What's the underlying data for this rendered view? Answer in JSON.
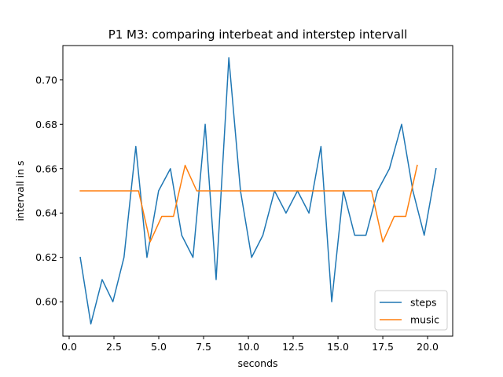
{
  "chart_data": {
    "type": "line",
    "title": "P1 M3: comparing interbeat and interstep intervall",
    "xlabel": "seconds",
    "ylabel": "intervall in s",
    "xlim": [
      -0.35,
      21.4
    ],
    "ylim": [
      0.5845,
      0.7155
    ],
    "xticks": [
      0.0,
      2.5,
      5.0,
      7.5,
      10.0,
      12.5,
      15.0,
      17.5,
      20.0
    ],
    "xtick_labels": [
      "0.0",
      "2.5",
      "5.0",
      "7.5",
      "10.0",
      "12.5",
      "15.0",
      "17.5",
      "20.0"
    ],
    "yticks": [
      0.6,
      0.62,
      0.64,
      0.66,
      0.68,
      0.7
    ],
    "ytick_labels": [
      "0.60",
      "0.62",
      "0.64",
      "0.66",
      "0.68",
      "0.70"
    ],
    "grid": false,
    "legend_position": "lower-right",
    "series": [
      {
        "name": "steps",
        "color": "#1f77b4",
        "x": [
          0.62,
          1.21,
          1.84,
          2.44,
          3.06,
          3.72,
          4.34,
          4.99,
          5.65,
          6.28,
          6.91,
          7.59,
          8.2,
          8.91,
          9.56,
          10.18,
          10.81,
          11.46,
          12.1,
          12.74,
          13.38,
          14.05,
          14.65,
          15.3,
          15.93,
          16.56,
          17.21,
          17.87,
          18.55,
          19.18,
          19.81,
          20.47
        ],
        "y": [
          0.62,
          0.59,
          0.61,
          0.6,
          0.62,
          0.67,
          0.62,
          0.65,
          0.66,
          0.63,
          0.62,
          0.68,
          0.61,
          0.71,
          0.65,
          0.62,
          0.63,
          0.65,
          0.64,
          0.65,
          0.64,
          0.67,
          0.6,
          0.65,
          0.63,
          0.63,
          0.65,
          0.66,
          0.68,
          0.65,
          0.63,
          0.66
        ]
      },
      {
        "name": "music",
        "color": "#ff7f0e",
        "x": [
          0.62,
          1.27,
          1.92,
          2.57,
          3.22,
          3.87,
          4.52,
          5.17,
          5.82,
          6.47,
          7.12,
          7.77,
          8.42,
          9.07,
          9.72,
          10.37,
          11.02,
          11.67,
          12.32,
          12.97,
          13.62,
          14.27,
          14.92,
          15.57,
          16.22,
          16.87,
          17.5,
          18.14,
          18.78,
          19.42
        ],
        "y": [
          0.65,
          0.65,
          0.65,
          0.65,
          0.65,
          0.65,
          0.627,
          0.6385,
          0.6385,
          0.6615,
          0.65,
          0.65,
          0.65,
          0.65,
          0.65,
          0.65,
          0.65,
          0.65,
          0.65,
          0.65,
          0.65,
          0.65,
          0.65,
          0.65,
          0.65,
          0.65,
          0.627,
          0.6385,
          0.6385,
          0.6615
        ]
      }
    ]
  }
}
